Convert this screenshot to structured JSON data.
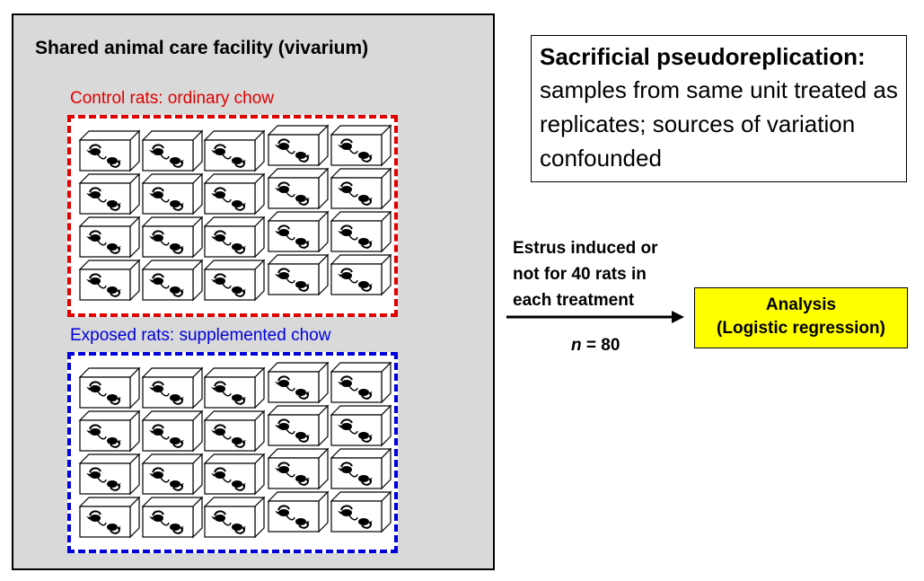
{
  "facility": {
    "title": "Shared animal care facility (vivarium)"
  },
  "groups": {
    "control": {
      "label": "Control rats: ordinary chow",
      "color": "#e00000",
      "cage_count": 20
    },
    "exposed": {
      "label": "Exposed rats: supplemented chow",
      "color": "#0000dd",
      "cage_count": 20
    }
  },
  "info_box": {
    "title": "Sacrificial pseudoreplication:",
    "body": "samples from same unit treated as replicates; sources of variation confounded"
  },
  "process": {
    "line1": "Estrus induced or",
    "line2": "not for 40 rats in",
    "line3": "each treatment",
    "n_var": "n",
    "n_value": " = 80"
  },
  "analysis": {
    "line1": "Analysis",
    "line2": "(Logistic regression)",
    "color": "#ffff00"
  },
  "icons": {
    "cage": "rat-cage-icon",
    "arrow": "arrow-right-icon"
  }
}
